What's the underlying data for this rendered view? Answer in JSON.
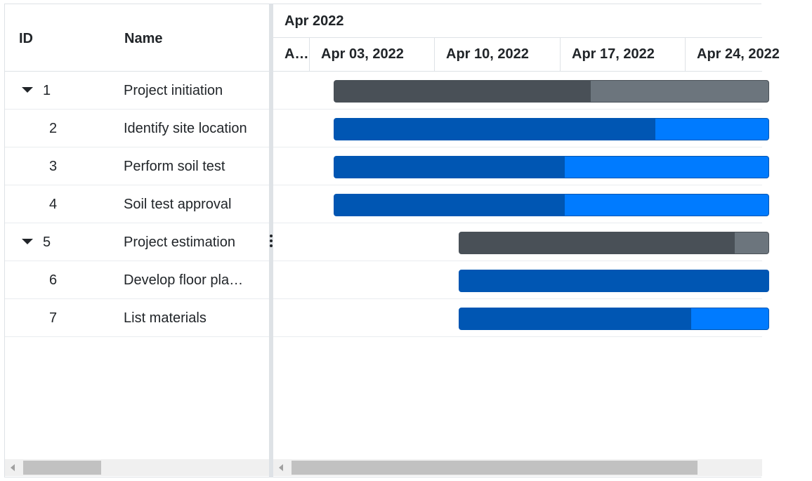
{
  "grid": {
    "headers": {
      "id": "ID",
      "name": "Name"
    },
    "rows": [
      {
        "id": "1",
        "name": "Project initiation",
        "parent": true
      },
      {
        "id": "2",
        "name": "Identify site location",
        "parent": false
      },
      {
        "id": "3",
        "name": "Perform soil test",
        "parent": false
      },
      {
        "id": "4",
        "name": "Soil test approval",
        "parent": false
      },
      {
        "id": "5",
        "name": "Project estimation",
        "parent": true
      },
      {
        "id": "6",
        "name": "Develop floor pla…",
        "parent": false
      },
      {
        "id": "7",
        "name": "List materials",
        "parent": false
      }
    ]
  },
  "timeline": {
    "top": "Apr 2022",
    "bottom": [
      "A…",
      "Apr 03, 2022",
      "Apr 10, 2022",
      "Apr 17, 2022",
      "Apr 24, 2022"
    ]
  },
  "tasks": [
    {
      "id": "1",
      "progress": 0.59,
      "type": "parent"
    },
    {
      "id": "2",
      "progress": 0.74,
      "type": "child"
    },
    {
      "id": "3",
      "progress": 0.53,
      "type": "child"
    },
    {
      "id": "4",
      "progress": 0.53,
      "type": "child"
    },
    {
      "id": "5",
      "progress": 0.89,
      "type": "parent"
    },
    {
      "id": "6",
      "progress": 1.0,
      "type": "child"
    },
    {
      "id": "7",
      "progress": 0.75,
      "type": "child"
    }
  ],
  "colors": {
    "parent_bar": "#6c757d",
    "parent_progress": "#495057",
    "child_bar": "#0d6efd",
    "child_bar_light": "#007bff",
    "child_progress": "#0056b3"
  },
  "icons": {
    "expand": "caret-down-icon",
    "scroll_left": "scroll-left-arrow-icon",
    "splitter": "more-vertical-icon"
  }
}
